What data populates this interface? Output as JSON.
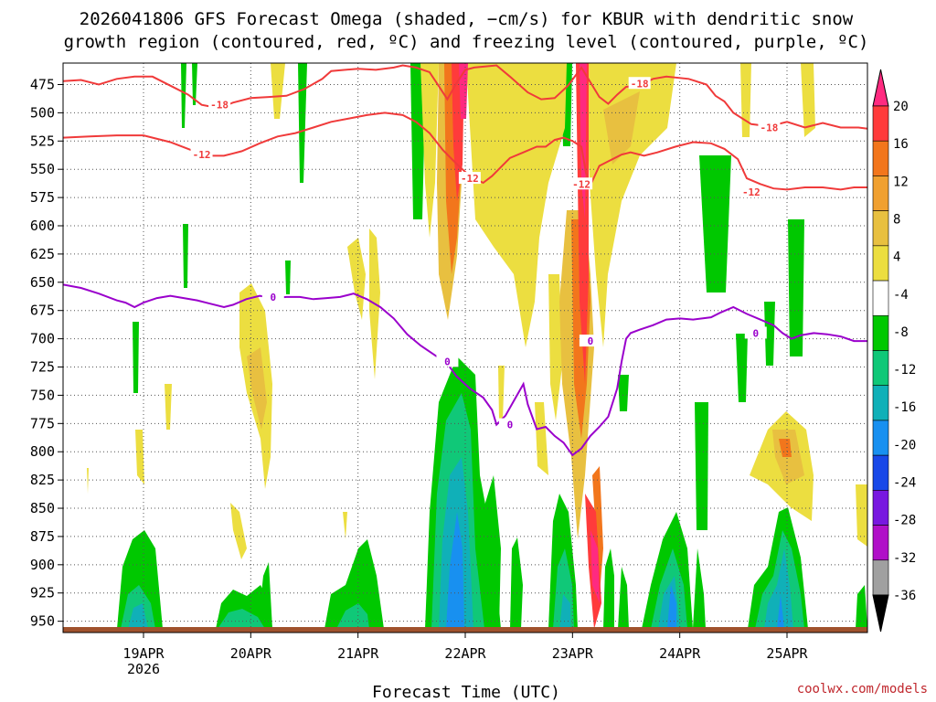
{
  "chart_data": {
    "type": "heatmap",
    "title_lines": [
      "2026041806 GFS Forecast Omega (shaded, −cm/s) for KBUR with dendritic snow",
      "growth region (contoured, red, ºC) and freezing level (contoured, purple, ºC)"
    ],
    "xlabel": "Forecast Time (UTC)",
    "credit": "coolwx.com/models",
    "y_axis": {
      "unit": "hPa",
      "range": [
        456,
        960
      ],
      "tick_values": [
        475,
        500,
        525,
        550,
        575,
        600,
        625,
        650,
        675,
        700,
        725,
        750,
        775,
        800,
        825,
        850,
        875,
        900,
        925,
        950
      ],
      "tick_labels": [
        "475",
        "500",
        "525",
        "550",
        "575",
        "600",
        "625",
        "650",
        "675",
        "700",
        "725",
        "750",
        "775",
        "800",
        "825",
        "850",
        "875",
        "900",
        "925",
        "950"
      ]
    },
    "x_axis": {
      "unit": "hours since 2026-04-18 06Z",
      "range": [
        0,
        180
      ],
      "tick_values": [
        18,
        42,
        66,
        90,
        114,
        138,
        162
      ],
      "tick_labels": [
        "19APR",
        "20APR",
        "21APR",
        "22APR",
        "23APR",
        "24APR",
        "25APR"
      ],
      "sub_label": "2026"
    },
    "colorbar": {
      "labels": [
        "20",
        "16",
        "12",
        "8",
        "4",
        "-4",
        "-8",
        "-12",
        "-16",
        "-20",
        "-24",
        "-28",
        "-32",
        "-36"
      ],
      "colors": [
        "#ff2a80",
        "#ff3b3b",
        "#f2761c",
        "#f0a030",
        "#e8c040",
        "#ecde40",
        "#ffffff",
        "#00c800",
        "#10c878",
        "#10b0b8",
        "#1890f0",
        "#1848e8",
        "#7818e0",
        "#b010c8",
        "#a0a0a0",
        "#000000"
      ]
    },
    "contours": [
      {
        "name": "freezing level",
        "level": "0",
        "color": "#9a00cc",
        "points": [
          [
            0,
            652
          ],
          [
            4,
            655
          ],
          [
            8,
            660
          ],
          [
            12,
            666
          ],
          [
            14,
            668
          ],
          [
            16,
            672
          ],
          [
            18,
            668
          ],
          [
            21,
            664
          ],
          [
            24,
            662
          ],
          [
            27,
            664
          ],
          [
            30,
            666
          ],
          [
            33,
            669
          ],
          [
            36,
            672
          ],
          [
            38,
            670
          ],
          [
            41,
            665
          ],
          [
            44,
            662
          ],
          [
            47,
            664
          ],
          [
            50,
            663
          ],
          [
            53,
            663
          ],
          [
            56,
            665
          ],
          [
            59,
            664
          ],
          [
            62,
            663
          ],
          [
            65,
            660
          ],
          [
            68,
            665
          ],
          [
            71,
            672
          ],
          [
            74,
            682
          ],
          [
            77,
            696
          ],
          [
            80,
            706
          ],
          [
            83,
            714
          ],
          [
            86,
            722
          ],
          [
            88,
            733
          ],
          [
            91,
            744
          ],
          [
            94,
            752
          ],
          [
            96,
            763
          ],
          [
            97,
            776
          ],
          [
            99,
            768
          ],
          [
            101,
            754
          ],
          [
            103,
            740
          ],
          [
            104,
            758
          ],
          [
            106,
            780
          ],
          [
            108,
            778
          ],
          [
            110,
            786
          ],
          [
            112,
            792
          ],
          [
            114,
            803
          ],
          [
            116,
            797
          ],
          [
            118,
            786
          ],
          [
            120,
            778
          ],
          [
            122,
            769
          ],
          [
            124,
            744
          ],
          [
            125,
            720
          ],
          [
            126,
            700
          ],
          [
            127,
            695
          ],
          [
            129,
            692
          ],
          [
            132,
            688
          ],
          [
            135,
            683
          ],
          [
            138,
            682
          ],
          [
            141,
            683
          ],
          [
            143,
            682
          ],
          [
            145,
            681
          ],
          [
            147,
            677
          ],
          [
            150,
            672
          ],
          [
            153,
            678
          ],
          [
            156,
            683
          ],
          [
            159,
            688
          ],
          [
            161,
            695
          ],
          [
            163,
            700
          ],
          [
            165,
            697
          ],
          [
            168,
            695
          ],
          [
            171,
            696
          ],
          [
            174,
            698
          ],
          [
            177,
            702
          ],
          [
            180,
            702
          ]
        ],
        "labels": [
          [
            47,
            663
          ],
          [
            86,
            720
          ],
          [
            100,
            776
          ],
          [
            118,
            702
          ],
          [
            155,
            695
          ]
        ]
      },
      {
        "name": "dgz -12C",
        "level": "-12",
        "color": "#f03a3a",
        "points": [
          [
            0,
            522
          ],
          [
            6,
            521
          ],
          [
            12,
            520
          ],
          [
            18,
            520
          ],
          [
            24,
            526
          ],
          [
            28,
            532
          ],
          [
            32,
            538
          ],
          [
            36,
            538
          ],
          [
            40,
            534
          ],
          [
            44,
            527
          ],
          [
            48,
            521
          ],
          [
            52,
            518
          ],
          [
            56,
            513
          ],
          [
            60,
            508
          ],
          [
            64,
            505
          ],
          [
            68,
            502
          ],
          [
            72,
            500
          ],
          [
            76,
            502
          ],
          [
            79,
            508
          ],
          [
            82,
            518
          ],
          [
            85,
            533
          ],
          [
            88,
            545
          ],
          [
            91,
            556
          ],
          [
            94,
            562
          ],
          [
            96,
            556
          ],
          [
            98,
            548
          ],
          [
            100,
            540
          ],
          [
            103,
            535
          ],
          [
            106,
            530
          ],
          [
            108,
            530
          ],
          [
            110,
            524
          ],
          [
            112,
            522
          ],
          [
            114,
            525
          ],
          [
            116,
            530
          ],
          [
            117,
            553
          ],
          [
            118,
            564
          ],
          [
            120,
            547
          ],
          [
            122,
            543
          ],
          [
            125,
            537
          ],
          [
            127,
            535
          ],
          [
            130,
            538
          ],
          [
            133,
            535
          ],
          [
            137,
            530
          ],
          [
            141,
            526
          ],
          [
            145,
            527
          ],
          [
            148,
            532
          ],
          [
            151,
            541
          ],
          [
            153,
            558
          ],
          [
            156,
            563
          ],
          [
            159,
            567
          ],
          [
            162,
            568
          ],
          [
            166,
            566
          ],
          [
            170,
            566
          ],
          [
            174,
            568
          ],
          [
            177,
            566
          ],
          [
            180,
            566
          ]
        ],
        "labels": [
          [
            31,
            537
          ],
          [
            91,
            558
          ],
          [
            116,
            563
          ],
          [
            154,
            570
          ]
        ]
      },
      {
        "name": "dgz -18C",
        "level": "-18",
        "color": "#f03a3a",
        "points": [
          [
            0,
            472
          ],
          [
            4,
            471
          ],
          [
            8,
            475
          ],
          [
            12,
            470
          ],
          [
            16,
            468
          ],
          [
            20,
            468
          ],
          [
            24,
            476
          ],
          [
            28,
            484
          ],
          [
            31,
            493
          ],
          [
            35,
            496
          ],
          [
            38,
            491
          ],
          [
            42,
            487
          ],
          [
            46,
            486
          ],
          [
            50,
            485
          ],
          [
            54,
            479
          ],
          [
            58,
            470
          ],
          [
            60,
            463
          ],
          [
            66,
            461
          ],
          [
            70,
            462
          ],
          [
            74,
            460
          ],
          [
            76,
            458
          ],
          [
            79,
            460
          ],
          [
            82,
            464
          ],
          [
            84,
            476
          ],
          [
            86,
            488
          ],
          [
            88,
            474
          ],
          [
            90,
            462
          ],
          [
            92,
            460
          ],
          [
            97,
            458
          ],
          [
            100,
            468
          ],
          [
            104,
            482
          ],
          [
            107,
            488
          ],
          [
            110,
            487
          ],
          [
            113,
            476
          ],
          [
            116,
            460
          ],
          [
            118,
            473
          ],
          [
            120,
            486
          ],
          [
            122,
            492
          ],
          [
            124,
            484
          ],
          [
            126,
            477
          ],
          [
            129,
            476
          ],
          [
            132,
            470
          ],
          [
            135,
            468
          ],
          [
            140,
            470
          ],
          [
            144,
            475
          ],
          [
            146,
            485
          ],
          [
            148,
            490
          ],
          [
            150,
            500
          ],
          [
            154,
            510
          ],
          [
            158,
            512
          ],
          [
            162,
            508
          ],
          [
            166,
            513
          ],
          [
            170,
            509
          ],
          [
            174,
            513
          ],
          [
            178,
            513
          ],
          [
            180,
            514
          ]
        ],
        "labels": [
          [
            35,
            493
          ],
          [
            129,
            474
          ],
          [
            158,
            513
          ]
        ]
      }
    ]
  }
}
